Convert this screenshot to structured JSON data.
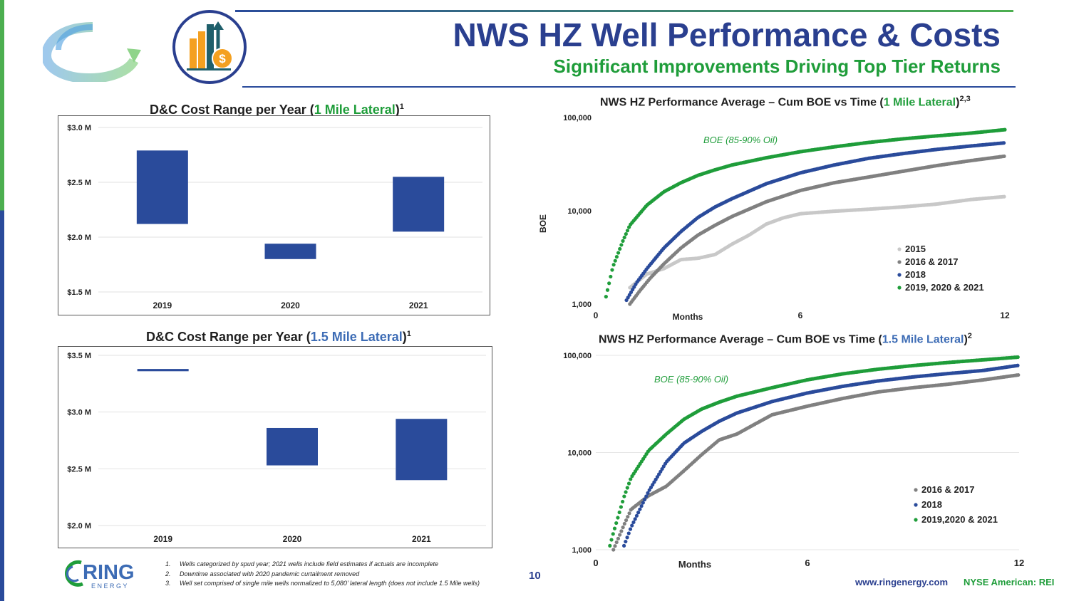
{
  "header": {
    "title": "NWS HZ Well Performance & Costs",
    "subtitle": "Significant Improvements Driving Top Tier Returns"
  },
  "colors": {
    "blue": "#2a4b9b",
    "green": "#1f9d3a",
    "gray_dark": "#808080",
    "gray_light": "#c8c8c8",
    "navy": "#2a3f8f"
  },
  "logo": {
    "word": "RING",
    "sub": "E N E R G Y"
  },
  "footer": {
    "notes": [
      {
        "num": "1.",
        "text": "Wells categorized by spud year; 2021 wells include field estimates if actuals are incomplete"
      },
      {
        "num": "2.",
        "text": "Downtime associated with 2020 pandemic curtailment removed"
      },
      {
        "num": "3.",
        "text": "Well set comprised of single mile wells normalized to 5,080’ lateral length (does not include 1.5 Mile wells)"
      }
    ],
    "page": "10",
    "website": "www.ringenergy.com",
    "ticker": "NYSE American: REI"
  },
  "chart_data": [
    {
      "type": "bar",
      "subtype": "floating-range",
      "title_pre": "D&C Cost Range per Year (",
      "title_hl": "1 Mile Lateral",
      "title_post": ")",
      "title_sup": "1",
      "categories": [
        "2019",
        "2020",
        "2021"
      ],
      "low": [
        2.12,
        1.8,
        2.05
      ],
      "high": [
        2.79,
        1.94,
        2.55
      ],
      "ylim": [
        1.5,
        3.0
      ],
      "yticks": [
        1.5,
        2.0,
        2.5,
        3.0
      ],
      "ytick_labels": [
        "$1.5 M",
        "$2.0 M",
        "$2.5 M",
        "$3.0 M"
      ]
    },
    {
      "type": "bar",
      "subtype": "floating-range",
      "title_pre": "D&C Cost Range per Year (",
      "title_hl": "1.5 Mile Lateral",
      "title_post": ")",
      "title_sup": "1",
      "categories": [
        "2019",
        "2020",
        "2021"
      ],
      "low": [
        3.36,
        2.53,
        2.4
      ],
      "high": [
        3.38,
        2.86,
        2.94
      ],
      "ylim": [
        2.0,
        3.5
      ],
      "yticks": [
        2.0,
        2.5,
        3.0,
        3.5
      ],
      "ytick_labels": [
        "$2.0 M",
        "$2.5 M",
        "$3.0 M",
        "$3.5 M"
      ]
    },
    {
      "type": "scatter",
      "title_pre": "NWS HZ Performance Average – Cum BOE vs Time (",
      "title_hl": "1 Mile Lateral",
      "title_post": ")",
      "title_sup": "2,3",
      "ylabel": "BOE",
      "xlabel": "Months",
      "yscale": "log",
      "ylim": [
        1000,
        100000
      ],
      "xlim": [
        0,
        12
      ],
      "yticks": [
        1000,
        10000,
        100000
      ],
      "ytick_labels": [
        "1,000",
        "10,000",
        "100,000"
      ],
      "xticks": [
        0,
        6,
        12
      ],
      "xtick_labels": [
        "0",
        "6",
        "12"
      ],
      "annotation": "BOE (85-90% Oil)",
      "legend_position": "right",
      "series": [
        {
          "name": "2015",
          "color": "#c8c8c8",
          "x": [
            1.0,
            1.5,
            2.0,
            2.5,
            3.0,
            3.5,
            4.0,
            4.5,
            5.0,
            5.5,
            6.0,
            7.0,
            8.0,
            9.0,
            10.0,
            11.0,
            12.0
          ],
          "y": [
            1500,
            2100,
            2400,
            3000,
            3100,
            3400,
            4400,
            5500,
            7200,
            8400,
            9300,
            9900,
            10400,
            11000,
            11800,
            13200,
            14200
          ]
        },
        {
          "name": "2016 & 2017",
          "color": "#808080",
          "x": [
            1.0,
            1.3,
            1.6,
            2.0,
            2.5,
            3.0,
            3.5,
            4.0,
            5.0,
            6.0,
            7.0,
            8.0,
            9.0,
            10.0,
            11.0,
            12.0
          ],
          "y": [
            1000,
            1400,
            1900,
            2700,
            4000,
            5500,
            7000,
            8700,
            12500,
            16500,
            20000,
            23000,
            26500,
            30500,
            34500,
            38500
          ]
        },
        {
          "name": "2018",
          "color": "#2a4b9b",
          "x": [
            0.9,
            1.2,
            1.5,
            2.0,
            2.5,
            3.0,
            3.5,
            4.0,
            5.0,
            6.0,
            7.0,
            8.0,
            9.0,
            10.0,
            11.0,
            12.0
          ],
          "y": [
            1100,
            1700,
            2400,
            4000,
            6000,
            8500,
            11000,
            13500,
            19500,
            25500,
            31000,
            36500,
            41000,
            45500,
            49500,
            53500
          ]
        },
        {
          "name": "2019, 2020 & 2021",
          "color": "#1f9d3a",
          "x": [
            0.3,
            0.5,
            0.8,
            1.0,
            1.5,
            2.0,
            2.5,
            3.0,
            3.5,
            4.0,
            5.0,
            6.0,
            7.0,
            8.0,
            9.0,
            10.0,
            11.0,
            12.0
          ],
          "y": [
            1200,
            2500,
            4800,
            7000,
            11500,
            16000,
            20000,
            24000,
            27500,
            31000,
            37000,
            43000,
            48500,
            54000,
            59000,
            63500,
            68000,
            74000
          ]
        }
      ]
    },
    {
      "type": "scatter",
      "title_pre": "NWS HZ Performance Average – Cum BOE vs Time (",
      "title_hl": "1.5 Mile Lateral",
      "title_post": ")",
      "title_sup": "2",
      "xlabel": "Months",
      "yscale": "log",
      "ylim": [
        1000,
        100000
      ],
      "xlim": [
        0,
        12
      ],
      "yticks": [
        1000,
        10000,
        100000
      ],
      "ytick_labels": [
        "1,000",
        "10,000",
        "100,000"
      ],
      "xticks": [
        0,
        6,
        12
      ],
      "xtick_labels": [
        "0",
        "6",
        "12"
      ],
      "annotation": "BOE (85-90% Oil)",
      "legend_position": "right",
      "series": [
        {
          "name": "2016 & 2017",
          "color": "#808080",
          "x": [
            0.5,
            0.8,
            1.0,
            1.5,
            2.0,
            2.5,
            3.0,
            3.5,
            4.0,
            4.5,
            5.0,
            6.0,
            7.0,
            8.0,
            9.0,
            10.0,
            11.0,
            12.0
          ],
          "y": [
            1000,
            1800,
            2600,
            3600,
            4500,
            6500,
            9500,
            13500,
            15500,
            19500,
            24500,
            30000,
            36000,
            42000,
            46500,
            50500,
            56000,
            63000
          ]
        },
        {
          "name": "2018",
          "color": "#2a4b9b",
          "x": [
            0.8,
            1.0,
            1.5,
            2.0,
            2.5,
            3.0,
            3.5,
            4.0,
            5.0,
            6.0,
            7.0,
            8.0,
            9.0,
            10.0,
            11.0,
            12.0
          ],
          "y": [
            1100,
            1700,
            4000,
            8000,
            12500,
            16500,
            21000,
            25500,
            33500,
            41000,
            48000,
            54500,
            60000,
            65000,
            70000,
            79000
          ]
        },
        {
          "name": "2019,2020 & 2021",
          "color": "#1f9d3a",
          "x": [
            0.4,
            0.5,
            0.8,
            1.0,
            1.5,
            2.0,
            2.5,
            3.0,
            3.5,
            4.0,
            5.0,
            6.0,
            7.0,
            8.0,
            9.0,
            10.0,
            11.0,
            12.0
          ],
          "y": [
            1100,
            1500,
            3500,
            5500,
            10500,
            15500,
            22000,
            28000,
            33000,
            38000,
            46500,
            56000,
            64500,
            72000,
            78500,
            84500,
            90000,
            96000
          ]
        }
      ]
    }
  ]
}
